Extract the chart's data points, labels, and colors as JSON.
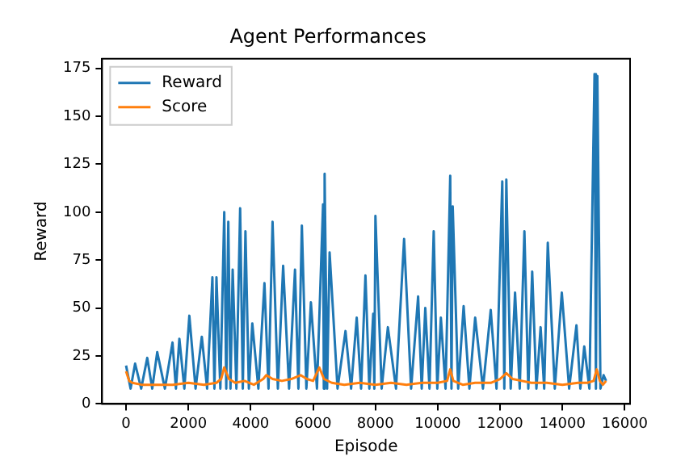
{
  "chart_data": {
    "type": "line",
    "title": "Agent Performances",
    "xlabel": "Episode",
    "ylabel": "Reward",
    "xlim": [
      -770,
      16170
    ],
    "xticks": [
      0,
      2000,
      4000,
      6000,
      8000,
      10000,
      12000,
      14000,
      16000
    ],
    "ylim": [
      0,
      180
    ],
    "yticks": [
      0,
      25,
      50,
      75,
      100,
      125,
      150,
      175
    ],
    "legend": "top left",
    "grid": false,
    "series": [
      {
        "name": "Reward",
        "color": "#1f77b4",
        "x": [
          0,
          145,
          290,
          485,
          680,
          840,
          1000,
          1245,
          1490,
          1600,
          1710,
          1870,
          2030,
          2230,
          2430,
          2600,
          2770,
          2835,
          2900,
          3025,
          3150,
          3215,
          3280,
          3350,
          3420,
          3540,
          3660,
          3745,
          3830,
          3940,
          4050,
          4245,
          4440,
          4570,
          4700,
          4870,
          5040,
          5230,
          5420,
          5530,
          5640,
          5785,
          5930,
          6125,
          6320,
          6345,
          6370,
          6450,
          6530,
          6785,
          7040,
          7220,
          7400,
          7540,
          7680,
          7805,
          7930,
          7965,
          8000,
          8200,
          8400,
          8660,
          8920,
          9145,
          9370,
          9485,
          9600,
          9735,
          9870,
          9985,
          10100,
          10250,
          10400,
          10440,
          10480,
          10655,
          10830,
          11015,
          11200,
          11450,
          11700,
          11885,
          12070,
          12135,
          12200,
          12340,
          12480,
          12630,
          12780,
          12905,
          13030,
          13165,
          13300,
          13415,
          13530,
          13755,
          13980,
          14215,
          14450,
          14575,
          14700,
          14865,
          15030,
          15075,
          15120,
          15220,
          15320,
          15400
        ],
        "values": [
          20,
          8,
          21,
          8,
          24,
          8,
          27,
          8,
          32,
          8,
          34,
          8,
          46,
          8,
          35,
          8,
          66,
          8,
          66,
          8,
          100,
          8,
          95,
          8,
          70,
          8,
          102,
          8,
          90,
          8,
          42,
          8,
          63,
          8,
          95,
          8,
          72,
          8,
          70,
          8,
          93,
          8,
          53,
          8,
          104,
          8,
          120,
          8,
          79,
          8,
          38,
          8,
          45,
          8,
          67,
          8,
          47,
          8,
          98,
          8,
          40,
          8,
          86,
          8,
          56,
          8,
          50,
          8,
          90,
          8,
          45,
          8,
          119,
          8,
          103,
          8,
          51,
          8,
          45,
          8,
          49,
          8,
          116,
          8,
          117,
          8,
          58,
          8,
          90,
          8,
          69,
          8,
          40,
          8,
          84,
          8,
          58,
          8,
          41,
          8,
          30,
          8,
          172,
          8,
          171,
          8,
          15,
          12
        ]
      },
      {
        "name": "Score",
        "color": "#ff7f0e",
        "x": [
          0,
          100,
          200,
          500,
          1000,
          1500,
          2000,
          2500,
          2900,
          3050,
          3150,
          3300,
          3500,
          3800,
          4100,
          4400,
          4500,
          4700,
          5000,
          5300,
          5600,
          5800,
          6000,
          6200,
          6350,
          6600,
          7000,
          7500,
          8000,
          8500,
          9000,
          9500,
          10000,
          10300,
          10400,
          10500,
          10800,
          11200,
          11700,
          12000,
          12200,
          12400,
          12700,
          13000,
          13500,
          14000,
          14500,
          14800,
          15000,
          15100,
          15200,
          15300,
          15400
        ],
        "values": [
          17,
          12,
          11,
          10,
          10,
          10,
          11,
          10,
          11,
          13,
          19,
          13,
          11,
          12,
          10,
          13,
          15,
          13,
          12,
          13,
          15,
          13,
          12,
          19,
          13,
          11,
          10,
          11,
          10,
          11,
          10,
          11,
          11,
          12,
          18,
          12,
          10,
          11,
          11,
          13,
          16,
          13,
          12,
          11,
          11,
          10,
          11,
          11,
          12,
          18,
          12,
          10,
          12
        ]
      }
    ]
  }
}
